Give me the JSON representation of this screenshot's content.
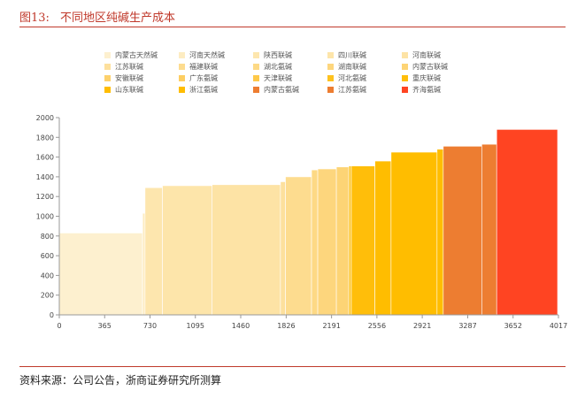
{
  "header": {
    "figure_number": "图13:",
    "title": "不同地区纯碱生产成本"
  },
  "footer": {
    "source": "资料来源：公司公告，浙商证券研究所测算"
  },
  "chart_data": {
    "type": "bar",
    "subtype": "cost-curve",
    "title": "",
    "xlabel": "",
    "ylabel": "",
    "xlim": [
      0,
      4017
    ],
    "ylim": [
      0,
      2000
    ],
    "x_ticks": [
      0,
      365,
      730,
      1095,
      1460,
      1826,
      2191,
      2556,
      2921,
      3287,
      3652,
      4017
    ],
    "y_ticks": [
      0,
      200,
      400,
      600,
      800,
      1000,
      1200,
      1400,
      1600,
      1800,
      2000
    ],
    "grid": false,
    "legend_position": "top",
    "series": [
      {
        "name": "内蒙古天然碱",
        "color": "#FDF0CF",
        "segments": [
          [
            0,
            670,
            830
          ]
        ]
      },
      {
        "name": "河南天然碱",
        "color": "#FDECC2",
        "segments": [
          [
            670,
            690,
            1030
          ]
        ]
      },
      {
        "name": "陕西联碱",
        "color": "#FDE6AE",
        "segments": [
          [
            690,
            830,
            1290
          ]
        ]
      },
      {
        "name": "四川联碱",
        "color": "#FDE5AA",
        "segments": [
          [
            830,
            1230,
            1310
          ]
        ]
      },
      {
        "name": "河南联碱",
        "color": "#FDE3A5",
        "segments": [
          [
            1230,
            1780,
            1320
          ]
        ]
      },
      {
        "name": "江苏联碱",
        "color": "#FDE09D",
        "segments": [
          [
            1780,
            1820,
            1350
          ]
        ]
      },
      {
        "name": "福建联碱",
        "color": "#FDDC8F",
        "segments": [
          [
            1820,
            2030,
            1400
          ]
        ]
      },
      {
        "name": "湖北氨碱",
        "color": "#FDD985",
        "segments": [
          [
            2030,
            2080,
            1470
          ]
        ]
      },
      {
        "name": "湖南联碱",
        "color": "#FDD67D",
        "segments": [
          [
            2080,
            2230,
            1480
          ]
        ]
      },
      {
        "name": "内蒙古联碱",
        "color": "#FDD475",
        "segments": [
          [
            2230,
            2330,
            1500
          ]
        ]
      },
      {
        "name": "安徽联碱",
        "color": "#FDD16C",
        "segments": [
          [
            2330,
            2330,
            1500
          ]
        ]
      },
      {
        "name": "广东氨碱",
        "color": "#FDCE62",
        "segments": [
          [
            2330,
            2330,
            1500
          ]
        ]
      },
      {
        "name": "天津联碱",
        "color": "#FEC949",
        "segments": [
          [
            2330,
            2330,
            1500
          ]
        ]
      },
      {
        "name": "河北氨碱",
        "color": "#FEC21F",
        "segments": [
          [
            2330,
            2350,
            1510
          ]
        ]
      },
      {
        "name": "重庆联碱",
        "color": "#FFBE0A",
        "segments": [
          [
            2350,
            2540,
            1510
          ]
        ]
      },
      {
        "name": "山东联碱",
        "color": "#FFBD00",
        "segments": [
          [
            2540,
            2670,
            1560
          ]
        ]
      },
      {
        "name": "浙江氨碱",
        "color": "#FFBD00",
        "segments": [
          [
            2670,
            3040,
            1650
          ],
          [
            3040,
            3090,
            1680
          ]
        ]
      },
      {
        "name": "内蒙古氨碱",
        "color": "#ED7D31",
        "segments": [
          [
            3090,
            3400,
            1710
          ]
        ]
      },
      {
        "name": "江苏氨碱",
        "color": "#ED7D31",
        "segments": [
          [
            3400,
            3520,
            1730
          ]
        ]
      },
      {
        "name": "齐海氨碱",
        "color": "#FF4422",
        "segments": [
          [
            3520,
            4010,
            1880
          ]
        ]
      }
    ]
  },
  "colors": {
    "title_red": "#c0392b",
    "axis": "#999999",
    "segment_stroke": "#ffffff"
  }
}
